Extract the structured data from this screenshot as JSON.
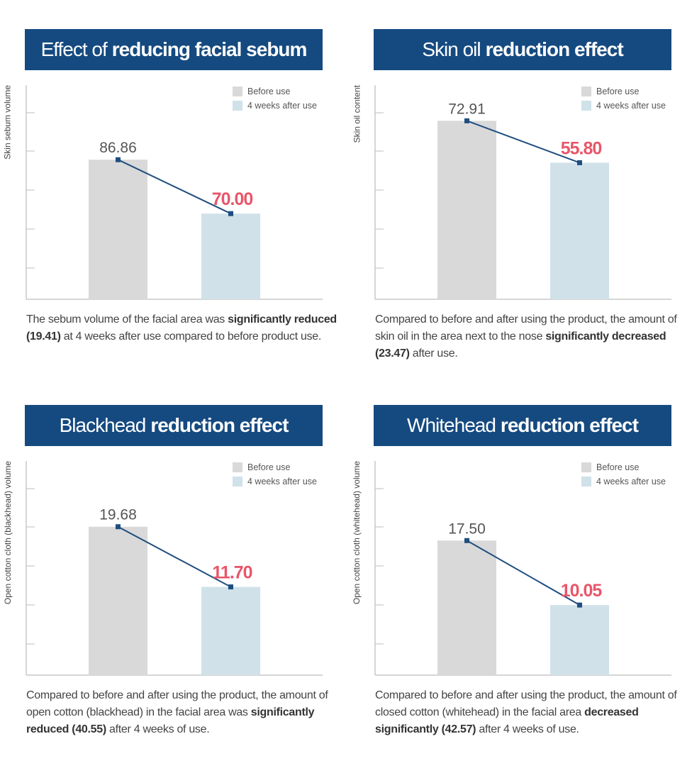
{
  "legend": {
    "before": "Before use",
    "after": "4 weeks after use"
  },
  "colors": {
    "header": "#154a80",
    "before_bar": "#d9d9d9",
    "after_bar": "#d0e1ea",
    "line": "#1f4e80",
    "after_value": "#e8566a",
    "axis": "#c8c8c8"
  },
  "panels": [
    {
      "title_light": "Effect of",
      "title_bold": "reducing facial sebum",
      "desc": [
        {
          "t": "The sebum volume of the facial area was ",
          "b": false
        },
        {
          "t": "significantly reduced (19.41)",
          "b": true
        },
        {
          "t": " at 4 weeks after use compared to before product use.",
          "b": false
        }
      ]
    },
    {
      "title_light": "Skin oil",
      "title_bold": "reduction effect",
      "desc": [
        {
          "t": "Compared to before and after using the product, the amount of skin oil in the area next to the nose ",
          "b": false
        },
        {
          "t": "significantly decreased (23.47)",
          "b": true
        },
        {
          "t": " after use.",
          "b": false
        }
      ]
    },
    {
      "title_light": "Blackhead",
      "title_bold": "reduction effect",
      "desc": [
        {
          "t": "Compared to before and after using the product, the amount of open cotton (blackhead) in the facial area was ",
          "b": false
        },
        {
          "t": "significantly reduced (40.55)",
          "b": true
        },
        {
          "t": " after 4 weeks of use.",
          "b": false
        }
      ]
    },
    {
      "title_light": "Whitehead",
      "title_bold": "reduction effect",
      "desc": [
        {
          "t": "Compared to before and after using the product, the amount of closed cotton (whitehead) in the facial area ",
          "b": false
        },
        {
          "t": "decreased significantly (42.57)",
          "b": true
        },
        {
          "t": " after 4 weeks of use.",
          "b": false
        }
      ]
    }
  ],
  "chart_data": [
    {
      "type": "bar",
      "ylabel": "Skin sebum volume",
      "categories": [
        "Before use",
        "4 weeks after use"
      ],
      "values": [
        86.86,
        70.0
      ],
      "labels": [
        "86.86",
        "70.00"
      ],
      "ylim": [
        43.2,
        110.2
      ],
      "grid": false,
      "legend": "top-right"
    },
    {
      "type": "bar",
      "ylabel": "Skin oil content",
      "categories": [
        "Before use",
        "4 weeks after use"
      ],
      "values": [
        72.91,
        55.8
      ],
      "labels": [
        "72.91",
        "55.80"
      ],
      "ylim": [
        0,
        87.5
      ],
      "grid": false,
      "legend": "top-right"
    },
    {
      "type": "bar",
      "ylabel": "Open cotton cloth (blackhead) volume",
      "categories": [
        "Before use",
        "4 weeks after use"
      ],
      "values": [
        19.68,
        11.7
      ],
      "labels": [
        "19.68",
        "11.70"
      ],
      "ylim": [
        0,
        28.4
      ],
      "grid": false,
      "legend": "top-right"
    },
    {
      "type": "bar",
      "ylabel": "Open cotton cloth (whitehead) volume",
      "categories": [
        "Before use",
        "4 weeks after use"
      ],
      "values": [
        17.5,
        10.05
      ],
      "labels": [
        "17.50",
        "10.05"
      ],
      "ylim": [
        1.95,
        26.7
      ],
      "grid": false,
      "legend": "top-right"
    }
  ]
}
